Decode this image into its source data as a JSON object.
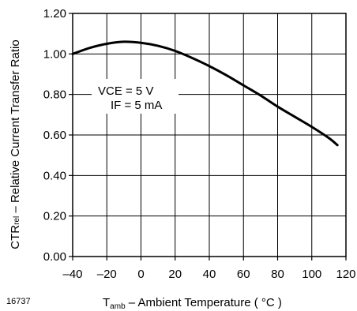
{
  "chart_data": {
    "type": "line",
    "figure_id": "16737",
    "xlabel": {
      "main": "T",
      "sub": "amb",
      "rest": " – Ambient Temperature ( °C )"
    },
    "ylabel": {
      "main": "CTR",
      "sub": "rel",
      "rest": " – Relative Current Transfer Ratio"
    },
    "xlim": [
      -40,
      120
    ],
    "ylim": [
      0,
      1.2
    ],
    "x_ticks": [
      "–40",
      "–20",
      "0",
      "20",
      "40",
      "60",
      "80",
      "100",
      "120"
    ],
    "x_tick_values": [
      -40,
      -20,
      0,
      20,
      40,
      60,
      80,
      100,
      120
    ],
    "y_ticks": [
      "0.00",
      "0.20",
      "0.40",
      "0.60",
      "0.80",
      "1.00",
      "1.20"
    ],
    "y_tick_values": [
      0,
      0.2,
      0.4,
      0.6,
      0.8,
      1.0,
      1.2
    ],
    "grid": true,
    "annotations": [
      "VCE = 5 V",
      "IF = 5 mA"
    ],
    "series": [
      {
        "x": [
          -40,
          -30,
          -20,
          -10,
          0,
          10,
          20,
          30,
          40,
          50,
          60,
          70,
          80,
          90,
          100,
          110,
          115
        ],
        "y": [
          1.0,
          1.03,
          1.05,
          1.06,
          1.055,
          1.04,
          1.015,
          0.98,
          0.94,
          0.895,
          0.845,
          0.795,
          0.74,
          0.69,
          0.64,
          0.585,
          0.55
        ]
      }
    ]
  }
}
